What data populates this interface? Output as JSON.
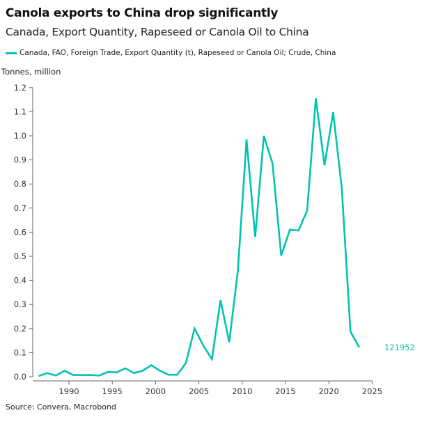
{
  "chart_data": {
    "type": "line",
    "title": "Canola exports to China drop significantly",
    "subtitle": "Canada, Export Quantity, Rapeseed or Canola Oil to China",
    "ylabel": "Tonnes, million",
    "source": "Source: Convera, Macrobond",
    "ylim": [
      0,
      1.2
    ],
    "xlim": [
      1986,
      2025
    ],
    "yticks": [
      "0.0",
      "0.1",
      "0.2",
      "0.3",
      "0.4",
      "0.5",
      "0.6",
      "0.7",
      "0.8",
      "0.9",
      "1.0",
      "1.1",
      "1.2"
    ],
    "xticks": [
      "1990",
      "1995",
      "2000",
      "2005",
      "2010",
      "2015",
      "2020",
      "2025"
    ],
    "grid": false,
    "legend_position": "top-left",
    "series": [
      {
        "name": "Canada, FAO, Foreign Trade, Export Quantity (t), Rapeseed or Canola Oil; Crude, China",
        "color": "#00c4b0",
        "last_value_label": "121952",
        "x": [
          1986,
          1987,
          1988,
          1989,
          1990,
          1991,
          1992,
          1993,
          1994,
          1995,
          1996,
          1997,
          1998,
          1999,
          2000,
          2001,
          2002,
          2003,
          2004,
          2005,
          2006,
          2007,
          2008,
          2009,
          2010,
          2011,
          2012,
          2013,
          2014,
          2015,
          2016,
          2017,
          2018,
          2019,
          2020,
          2021,
          2022,
          2023
        ],
        "values": [
          0.003,
          0.015,
          0.005,
          0.025,
          0.007,
          0.007,
          0.007,
          0.005,
          0.02,
          0.018,
          0.035,
          0.015,
          0.025,
          0.048,
          0.025,
          0.008,
          0.008,
          0.057,
          0.2,
          0.13,
          0.073,
          0.318,
          0.143,
          0.44,
          0.985,
          0.58,
          1.0,
          0.885,
          0.503,
          0.61,
          0.607,
          0.69,
          1.155,
          0.878,
          1.098,
          0.78,
          0.187,
          0.122
        ]
      }
    ]
  }
}
